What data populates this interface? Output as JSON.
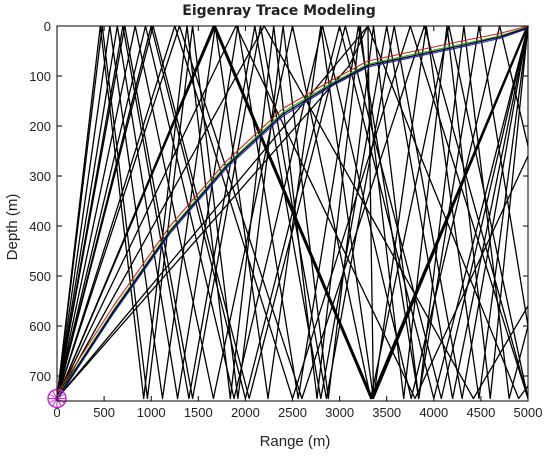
{
  "chart_data": {
    "type": "line",
    "title": "Eigenray Trace Modeling",
    "xlabel": "Range (m)",
    "ylabel": "Depth (m)",
    "xlim": [
      0,
      5000
    ],
    "ylim": [
      0,
      750
    ],
    "y_reversed": true,
    "grid": false,
    "xticks": [
      0,
      500,
      1000,
      1500,
      2000,
      2500,
      3000,
      3500,
      4000,
      4500,
      5000
    ],
    "yticks": [
      0,
      100,
      200,
      300,
      400,
      500,
      600,
      700
    ],
    "source": {
      "range": 0,
      "depth": 745,
      "color": "#cc22cc"
    },
    "receiver": {
      "range": 5000,
      "depth": 0
    },
    "series": [
      {
        "color": "#000000",
        "x": [
          0,
          1670,
          3340,
          5000
        ],
        "y": [
          745,
          0,
          745,
          0
        ]
      },
      {
        "color": "#000000",
        "x": [
          0,
          1660,
          3330,
          4990
        ],
        "y": [
          745,
          0,
          745,
          0
        ]
      },
      {
        "color": "#000000",
        "x": [
          0,
          1680,
          3350,
          5000
        ],
        "y": [
          745,
          0,
          745,
          0
        ]
      },
      {
        "color": "#000000",
        "x": [
          0,
          700,
          1400,
          2100,
          2800,
          3500,
          4200,
          5000
        ],
        "y": [
          745,
          0,
          745,
          0,
          745,
          0,
          745,
          0
        ]
      },
      {
        "color": "#000000",
        "x": [
          0,
          720,
          1440,
          2160,
          2860,
          3580,
          4300,
          5000
        ],
        "y": [
          745,
          0,
          745,
          0,
          745,
          0,
          745,
          0
        ]
      },
      {
        "color": "#000000",
        "x": [
          0,
          460,
          920,
          1380,
          1840,
          2300,
          2760,
          3220,
          3680,
          4140,
          4600,
          5000
        ],
        "y": [
          745,
          0,
          745,
          0,
          745,
          0,
          745,
          0,
          745,
          0,
          745,
          0
        ]
      },
      {
        "color": "#000000",
        "x": [
          0,
          1000,
          2000,
          3000,
          4000,
          5000
        ],
        "y": [
          745,
          0,
          745,
          0,
          745,
          0
        ]
      },
      {
        "color": "#000000",
        "x": [
          0,
          1020,
          2040,
          3060,
          4080,
          5000
        ],
        "y": [
          745,
          0,
          745,
          0,
          745,
          0
        ]
      },
      {
        "color": "#000000",
        "x": [
          0,
          1250,
          2500,
          3750,
          5000
        ],
        "y": [
          745,
          0,
          745,
          0,
          745
        ]
      },
      {
        "color": "#000000",
        "x": [
          0,
          560,
          1120,
          1680,
          2240,
          2800,
          3360,
          3920,
          4480,
          5000
        ],
        "y": [
          745,
          0,
          745,
          0,
          745,
          0,
          745,
          0,
          745,
          0
        ]
      },
      {
        "color": "#000000",
        "x": [
          0,
          830,
          1660,
          2500,
          3330,
          4160,
          5000
        ],
        "y": [
          745,
          0,
          745,
          0,
          745,
          0,
          745
        ]
      },
      {
        "color": "#000000",
        "x": [
          0,
          1300,
          2600,
          3900,
          5000
        ],
        "y": [
          745,
          0,
          745,
          0,
          745
        ]
      },
      {
        "color": "#000000",
        "x": [
          0,
          940,
          1880,
          2820,
          3760,
          4700,
          5000
        ],
        "y": [
          745,
          0,
          745,
          0,
          745,
          0,
          240
        ]
      },
      {
        "color": "#000000",
        "x": [
          0,
          1900,
          3800,
          5000
        ],
        "y": [
          745,
          0,
          745,
          260
        ]
      },
      {
        "color": "#000000",
        "x": [
          0,
          2200,
          4420,
          5000
        ],
        "y": [
          745,
          0,
          745,
          560
        ]
      },
      {
        "color": "#000000",
        "x": [
          0,
          3300,
          4900,
          5000
        ],
        "y": [
          745,
          0,
          745,
          720
        ]
      },
      {
        "color": "#000000",
        "x": [
          0,
          480,
          960,
          1440,
          1920,
          2400,
          2880,
          3360,
          3840,
          4320,
          4800,
          5000
        ],
        "y": [
          745,
          0,
          745,
          0,
          745,
          0,
          745,
          0,
          745,
          0,
          745,
          600
        ]
      },
      {
        "color": "#000000",
        "x": [
          0,
          640,
          1280,
          1920,
          2560,
          3200,
          3840,
          4480,
          5000
        ],
        "y": [
          745,
          0,
          745,
          0,
          745,
          0,
          745,
          0,
          600
        ]
      },
      {
        "color": "#000000",
        "x": [
          0,
          3100,
          3300,
          3360,
          5000
        ],
        "y": [
          745,
          80,
          0,
          745,
          0
        ]
      },
      {
        "color": "#cc2222",
        "x": [
          0,
          600,
          1200,
          1800,
          2400,
          2900,
          3300,
          3800,
          4300,
          4700,
          5000
        ],
        "y": [
          735,
          560,
          400,
          270,
          165,
          110,
          70,
          50,
          30,
          15,
          0
        ]
      },
      {
        "color": "#22aa22",
        "x": [
          0,
          600,
          1200,
          1800,
          2400,
          2900,
          3300,
          3800,
          4300,
          4700,
          5000
        ],
        "y": [
          742,
          568,
          408,
          277,
          172,
          116,
          76,
          56,
          36,
          20,
          2
        ]
      },
      {
        "color": "#2222cc",
        "x": [
          0,
          600,
          1200,
          1800,
          2400,
          2900,
          3300,
          3800,
          4300,
          4700,
          5000
        ],
        "y": [
          748,
          575,
          415,
          284,
          180,
          122,
          82,
          62,
          42,
          25,
          5
        ]
      },
      {
        "color": "#000000",
        "x": [
          0,
          600,
          1200,
          1800,
          2400,
          2900,
          3300,
          3800,
          4300,
          4700,
          5000
        ],
        "y": [
          745,
          571,
          411,
          280,
          176,
          119,
          79,
          59,
          39,
          22,
          3
        ]
      }
    ]
  }
}
